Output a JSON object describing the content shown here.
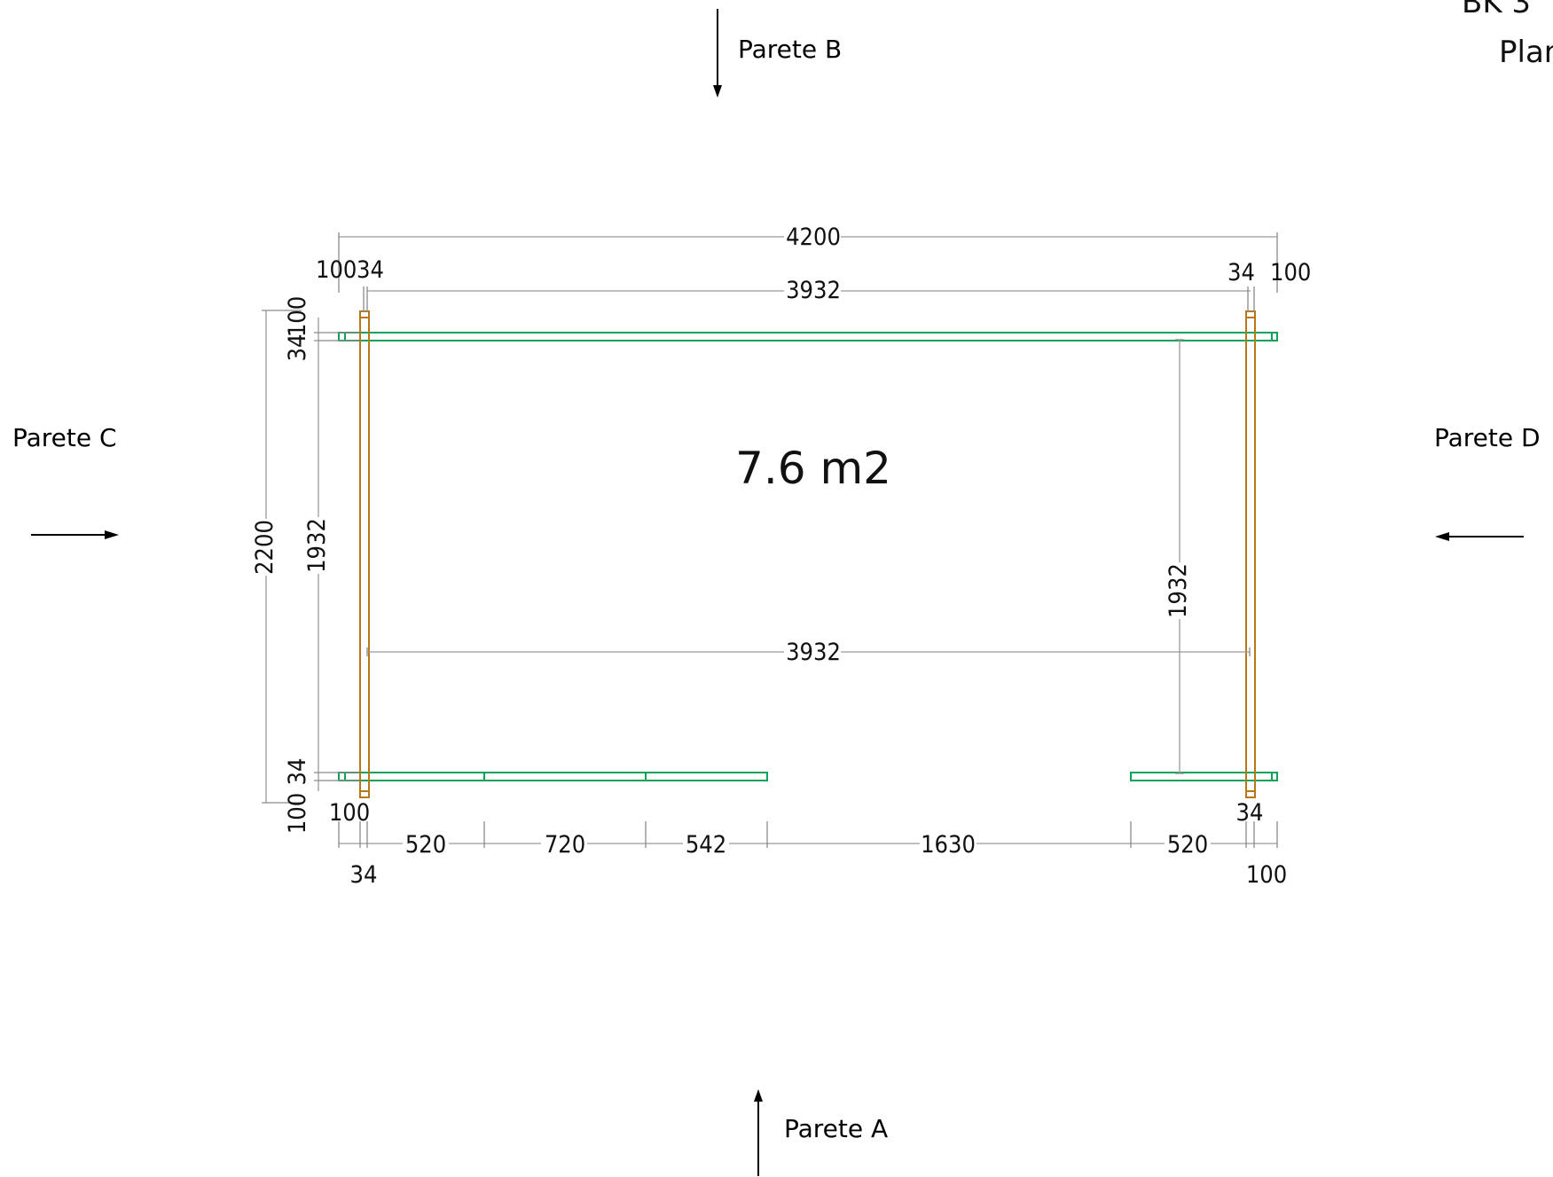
{
  "title": {
    "line1": "BK 3",
    "line2": "Plan"
  },
  "walls": {
    "a": "Parete A",
    "b": "Parete B",
    "c": "Parete C",
    "d": "Parete D"
  },
  "area": "7.6 m2",
  "dimensions": {
    "total_width": "4200",
    "inner_width_top": "3932",
    "inner_width_mid": "3932",
    "top_left_100": "100",
    "top_left_34": "34",
    "top_right_34": "34",
    "top_right_100": "100",
    "total_height": "2200",
    "inner_height_left": "1932",
    "inner_height_right": "1932",
    "left_top_100": "100",
    "left_top_34": "34",
    "left_bottom_34": "34",
    "left_bottom_100": "100",
    "bottom_100_left": "100",
    "bottom_34_left": "34",
    "bottom_520_left": "520",
    "bottom_720": "720",
    "bottom_542": "542",
    "bottom_1630": "1630",
    "bottom_520_right": "520",
    "bottom_34_right": "34",
    "bottom_100_right": "100"
  }
}
